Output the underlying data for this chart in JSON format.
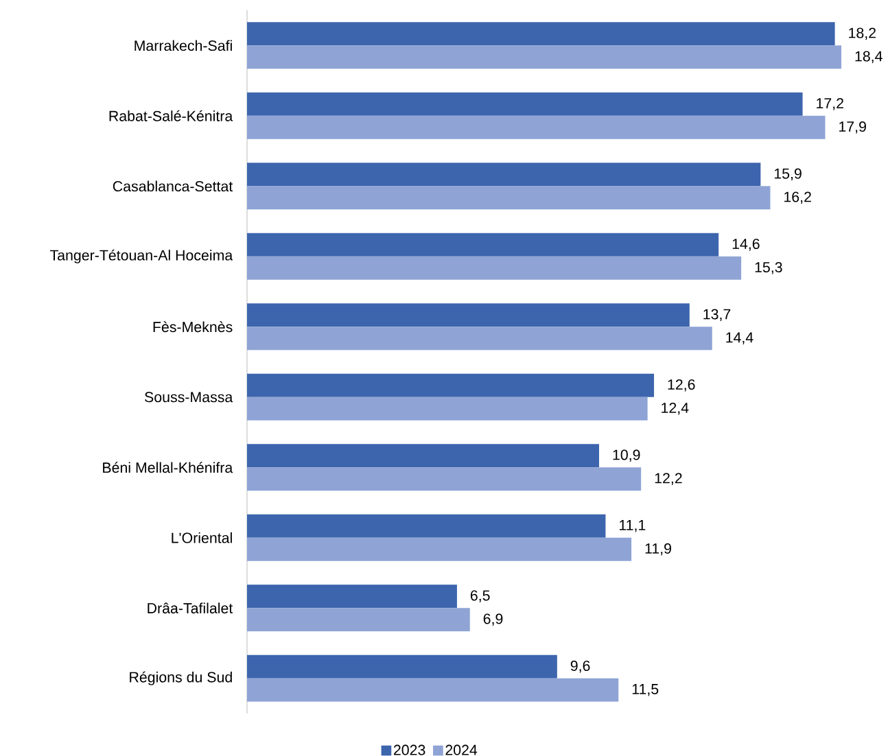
{
  "chart_data": {
    "type": "bar",
    "orientation": "horizontal",
    "legend": "bottom",
    "tick_labels": "y",
    "categories": [
      "Marrakech-Safi",
      "Rabat-Salé-Kénitra",
      "Casablanca-Settat",
      "Tanger-Tétouan-Al Hoceima",
      "Fès-Meknès",
      "Souss-Massa",
      "Béni Mellal-Khénifra",
      "L'Oriental",
      "Drâa-Tafilalet",
      "Régions du Sud"
    ],
    "series": [
      {
        "name": "2023",
        "color": "#3d65ad",
        "values": [
          18.2,
          17.2,
          15.9,
          14.6,
          13.7,
          12.6,
          10.9,
          11.1,
          6.5,
          9.6
        ],
        "value_labels": [
          "18,2",
          "17,2",
          "15,9",
          "14,6",
          "13,7",
          "12,6",
          "10,9",
          "11,1",
          "6,5",
          "9,6"
        ]
      },
      {
        "name": "2024",
        "color": "#8fa4d5",
        "values": [
          18.4,
          17.9,
          16.2,
          15.3,
          14.4,
          12.4,
          12.2,
          11.9,
          6.9,
          11.5
        ],
        "value_labels": [
          "18,4",
          "17,9",
          "16,2",
          "15,3",
          "14,4",
          "12,4",
          "12,2",
          "11,9",
          "6,9",
          "11,5"
        ]
      }
    ]
  }
}
